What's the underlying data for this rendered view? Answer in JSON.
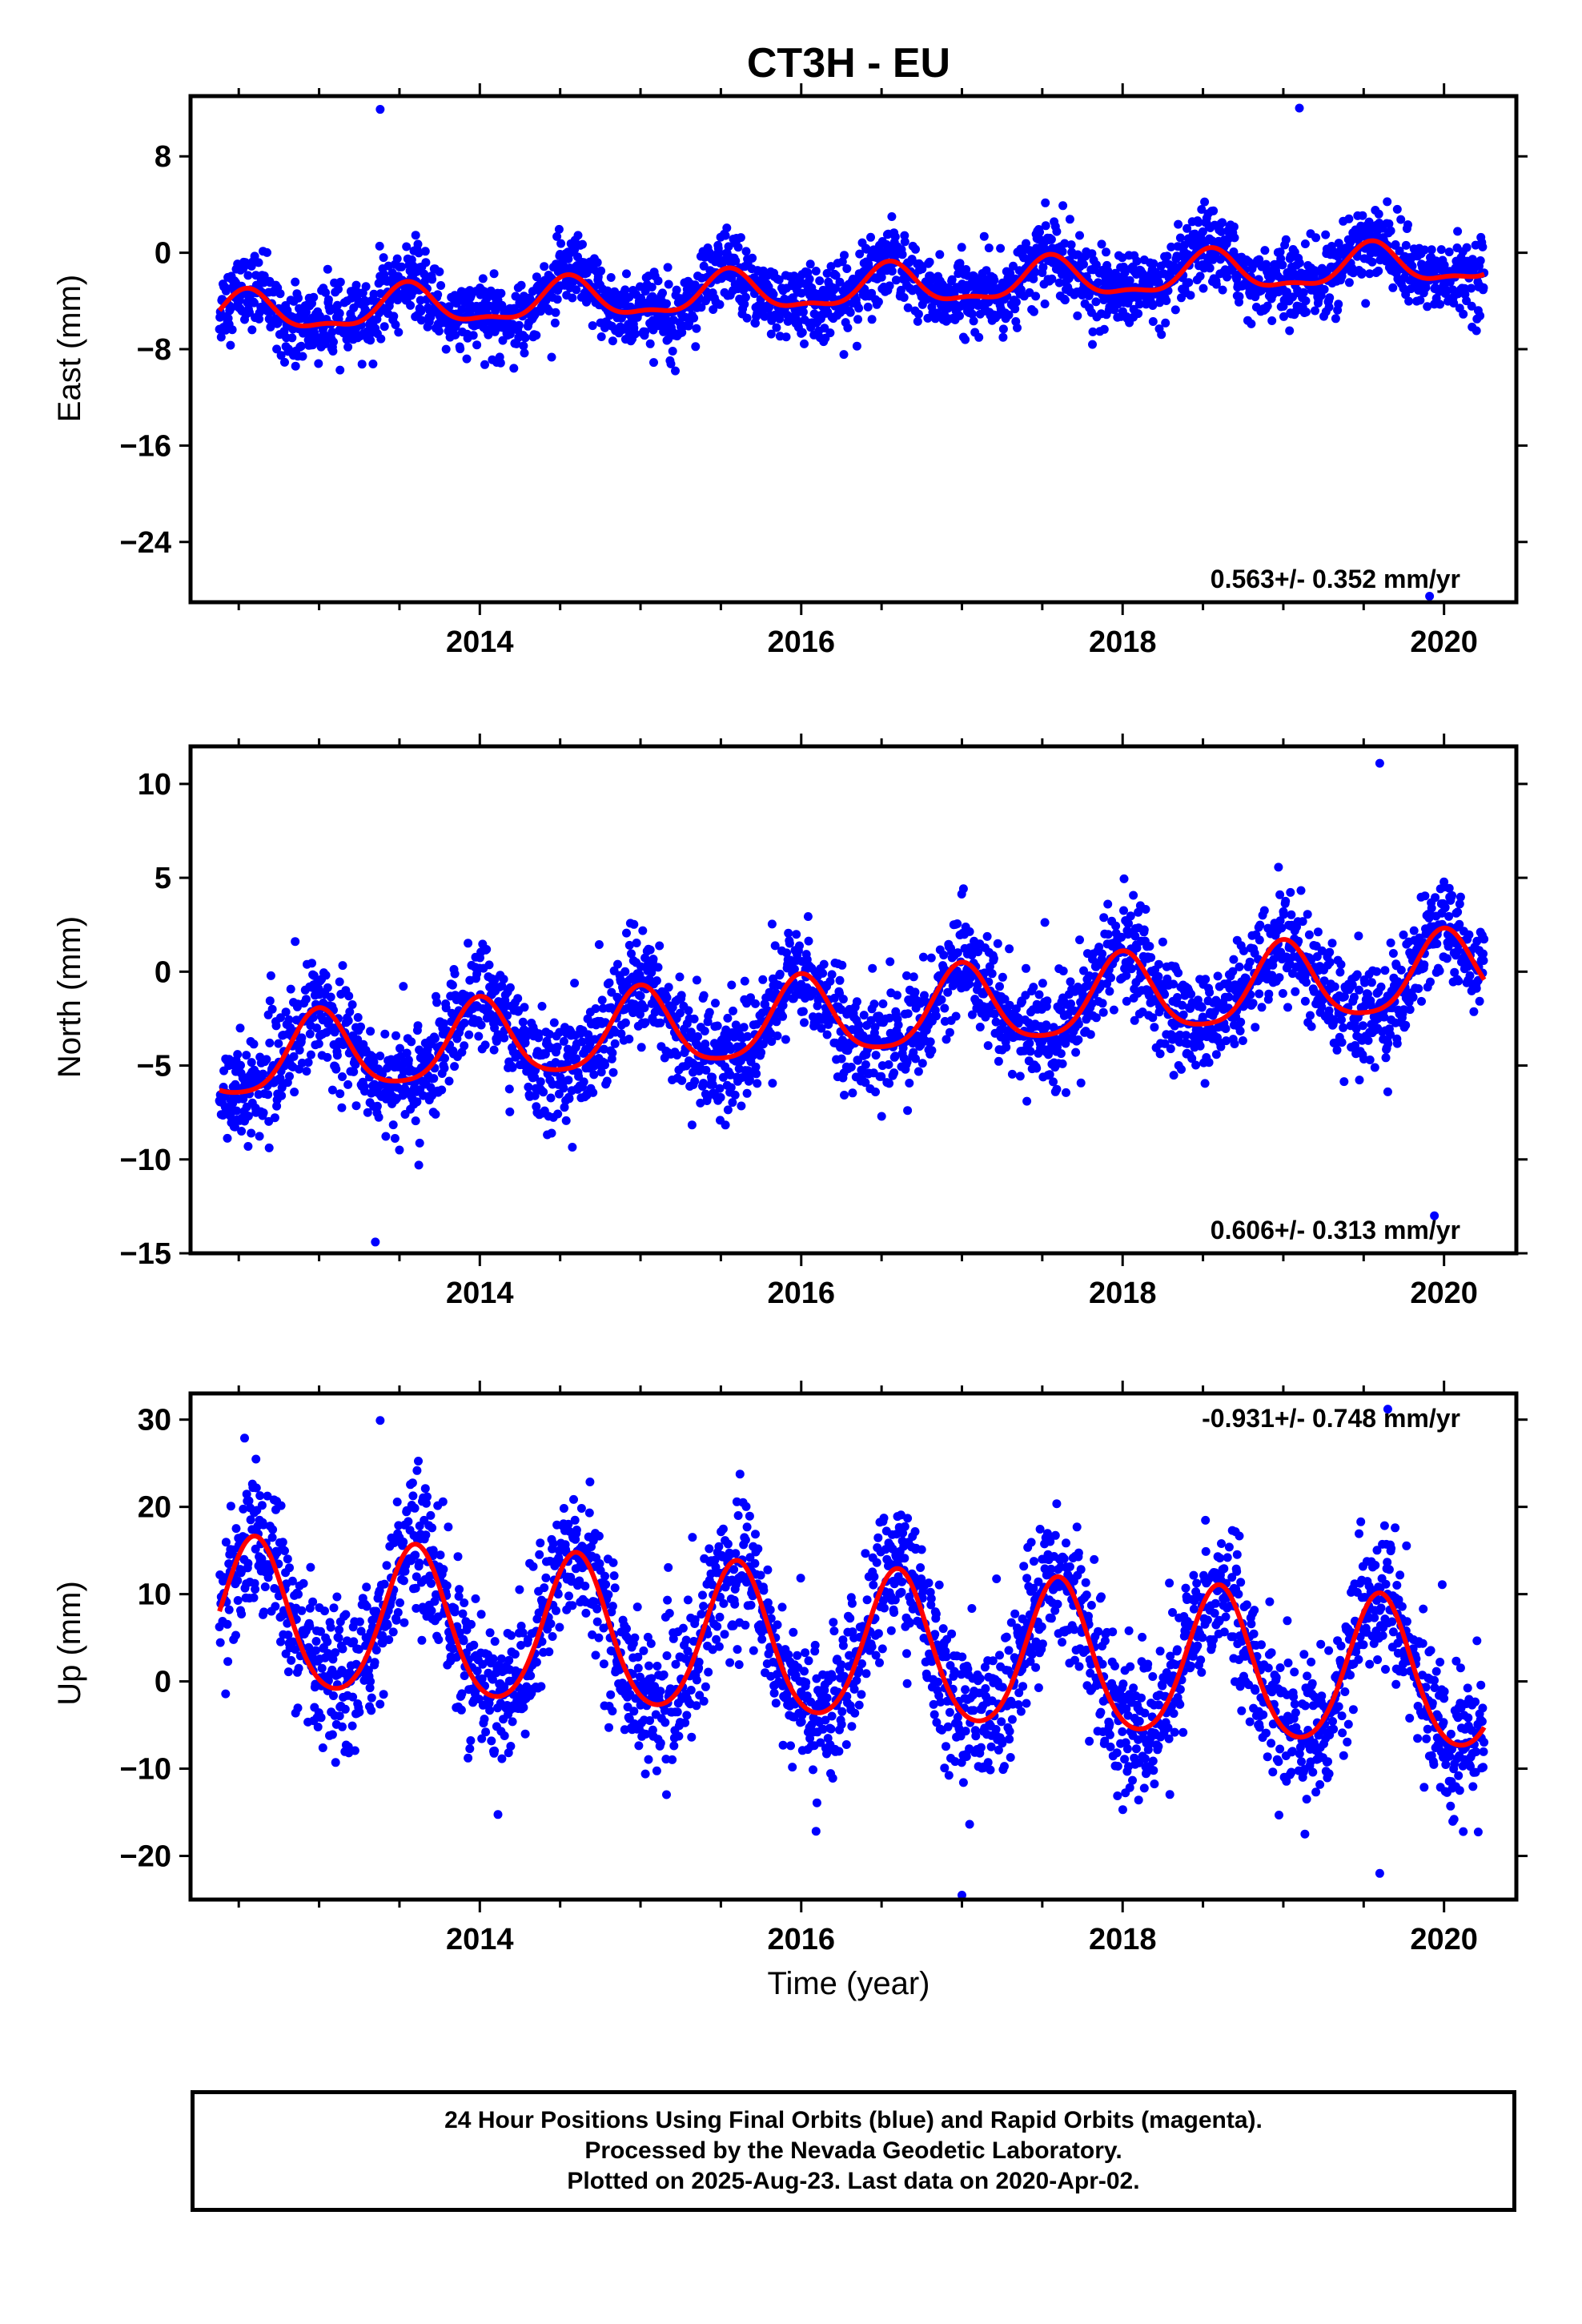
{
  "title": "CT3H - EU",
  "xlabel": "Time (year)",
  "colors": {
    "points": "#0000ff",
    "model": "#ff0000",
    "frame": "#000000"
  },
  "footer": {
    "line1": "24 Hour Positions Using Final Orbits (blue) and Rapid Orbits (magenta).",
    "line2": "Processed by the Nevada Geodetic Laboratory.",
    "line3": "Plotted on 2025-Aug-23. Last data on 2020-Apr-02."
  },
  "chart_data": [
    {
      "type": "scatter",
      "ylabel": "East (mm)",
      "rate_text": "0.563+/- 0.352 mm/yr",
      "rate_position": "bottom-right",
      "xlim": [
        2012.2,
        2020.45
      ],
      "ylim": [
        -29,
        13
      ],
      "x_ticks": [
        2014,
        2016,
        2018,
        2020
      ],
      "y_ticks": [
        8,
        0,
        -8,
        -16,
        -24
      ],
      "y_tick_labels": [
        "8",
        "0",
        "−8",
        "−16",
        "−24"
      ],
      "model": {
        "name": "",
        "offset": -3.2,
        "trend_mm_per_yr": 0.563,
        "annual_amp": 1.6,
        "annual_phase_year": 0.55,
        "semiannual_amp": 0.6
      },
      "scatter_sd": 1.5,
      "outliers": [
        {
          "x": 2013.38,
          "y": 11.9
        },
        {
          "x": 2019.91,
          "y": -28.5
        },
        {
          "x": 2019.1,
          "y": 12.0
        }
      ]
    },
    {
      "type": "scatter",
      "ylabel": "North (mm)",
      "rate_text": "0.606+/- 0.313 mm/yr",
      "rate_position": "bottom-right",
      "xlim": [
        2012.2,
        2020.45
      ],
      "ylim": [
        -15,
        12
      ],
      "x_ticks": [
        2014,
        2016,
        2018,
        2020
      ],
      "y_ticks": [
        10,
        5,
        0,
        -5,
        -10,
        -15
      ],
      "y_tick_labels": [
        "10",
        "5",
        "0",
        "−5",
        "−10",
        "−15"
      ],
      "model": {
        "name": "",
        "offset": -2.6,
        "trend_mm_per_yr": 0.606,
        "annual_amp": 2.1,
        "annual_phase_year": 0.0,
        "semiannual_amp": 0.4
      },
      "scatter_sd": 1.4,
      "outliers": [
        {
          "x": 2013.35,
          "y": -14.4
        },
        {
          "x": 2013.5,
          "y": -9.5
        },
        {
          "x": 2019.94,
          "y": -13.0
        },
        {
          "x": 2019.6,
          "y": 11.1
        },
        {
          "x": 2019.65,
          "y": -6.4
        }
      ]
    },
    {
      "type": "scatter",
      "ylabel": "Up (mm)",
      "rate_text": "-0.931+/- 0.748 mm/yr",
      "rate_position": "top-right",
      "xlim": [
        2012.2,
        2020.45
      ],
      "ylim": [
        -25,
        33
      ],
      "x_ticks": [
        2014,
        2016,
        2018,
        2020
      ],
      "y_ticks": [
        30,
        20,
        10,
        0,
        -10,
        -20
      ],
      "y_tick_labels": [
        "30",
        "20",
        "10",
        "0",
        "−10",
        "−20"
      ],
      "model": {
        "name": "",
        "offset": 4.0,
        "trend_mm_per_yr": -0.931,
        "annual_amp": 8.5,
        "annual_phase_year": 0.6,
        "semiannual_amp": 1.0
      },
      "scatter_sd": 4.0,
      "outliers": [
        {
          "x": 2013.38,
          "y": 29.9
        },
        {
          "x": 2019.65,
          "y": 31.2
        },
        {
          "x": 2017.0,
          "y": -24.5
        },
        {
          "x": 2019.6,
          "y": -22.0
        }
      ]
    }
  ]
}
